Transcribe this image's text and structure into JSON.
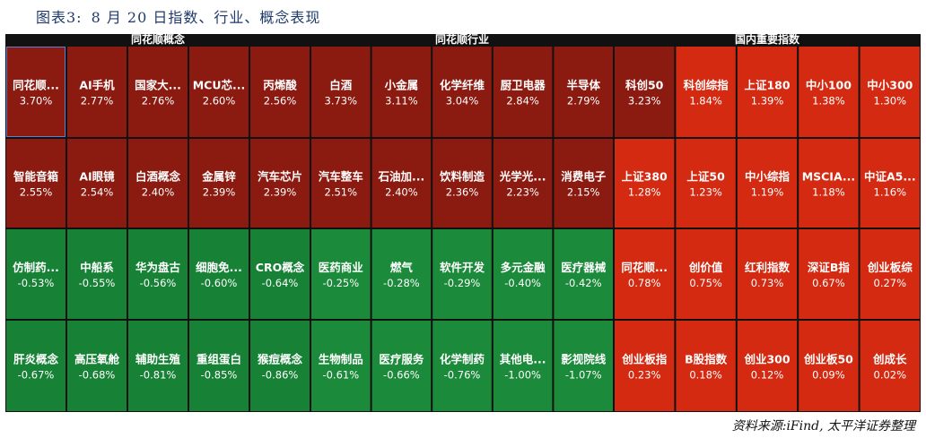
{
  "figure": {
    "label": "图表3:",
    "title": "8 月 20 日指数、行业、概念表现",
    "source": "资料来源:iFind, 太平洋证券整理"
  },
  "colors": {
    "positive_strong": "#8b1a10",
    "positive_mid": "#b3240f",
    "positive_light": "#d42a12",
    "negative_mid": "#1b8a3a",
    "negative_strong": "#178236"
  },
  "chart_data": {
    "type": "heatmap",
    "title": "",
    "groups": [
      {
        "name": "同花顺概念",
        "tiles": [
          {
            "name": "同花顺...",
            "value": "3.70%"
          },
          {
            "name": "AI手机",
            "value": "2.77%"
          },
          {
            "name": "国家大...",
            "value": "2.76%"
          },
          {
            "name": "MCU芯...",
            "value": "2.60%"
          },
          {
            "name": "丙烯酸",
            "value": "2.56%"
          },
          {
            "name": "智能音箱",
            "value": "2.55%"
          },
          {
            "name": "AI眼镜",
            "value": "2.54%"
          },
          {
            "name": "白酒概念",
            "value": "2.40%"
          },
          {
            "name": "金属锌",
            "value": "2.39%"
          },
          {
            "name": "汽车芯片",
            "value": "2.39%"
          },
          {
            "name": "仿制药...",
            "value": "-0.53%"
          },
          {
            "name": "中船系",
            "value": "-0.55%"
          },
          {
            "name": "华为盘古",
            "value": "-0.56%"
          },
          {
            "name": "细胞免...",
            "value": "-0.60%"
          },
          {
            "name": "CRO概念",
            "value": "-0.64%"
          },
          {
            "name": "肝炎概念",
            "value": "-0.67%"
          },
          {
            "name": "高压氧舱",
            "value": "-0.68%"
          },
          {
            "name": "辅助生殖",
            "value": "-0.81%"
          },
          {
            "name": "重组蛋白",
            "value": "-0.85%"
          },
          {
            "name": "猴痘概念",
            "value": "-0.86%"
          }
        ]
      },
      {
        "name": "同花顺行业",
        "tiles": [
          {
            "name": "白酒",
            "value": "3.73%"
          },
          {
            "name": "小金属",
            "value": "3.11%"
          },
          {
            "name": "化学纤维",
            "value": "3.04%"
          },
          {
            "name": "厨卫电器",
            "value": "2.84%"
          },
          {
            "name": "半导体",
            "value": "2.79%"
          },
          {
            "name": "汽车整车",
            "value": "2.51%"
          },
          {
            "name": "石油加...",
            "value": "2.40%"
          },
          {
            "name": "饮料制造",
            "value": "2.36%"
          },
          {
            "name": "光学光...",
            "value": "2.23%"
          },
          {
            "name": "消费电子",
            "value": "2.15%"
          },
          {
            "name": "医药商业",
            "value": "-0.25%"
          },
          {
            "name": "燃气",
            "value": "-0.28%"
          },
          {
            "name": "软件开发",
            "value": "-0.29%"
          },
          {
            "name": "多元金融",
            "value": "-0.40%"
          },
          {
            "name": "医疗器械",
            "value": "-0.42%"
          },
          {
            "name": "生物制品",
            "value": "-0.61%"
          },
          {
            "name": "医疗服务",
            "value": "-0.66%"
          },
          {
            "name": "化学制药",
            "value": "-0.76%"
          },
          {
            "name": "其他电...",
            "value": "-1.00%"
          },
          {
            "name": "影视院线",
            "value": "-1.07%"
          }
        ]
      },
      {
        "name": "国内重要指数",
        "tiles": [
          {
            "name": "科创50",
            "value": "3.23%"
          },
          {
            "name": "科创综指",
            "value": "1.84%"
          },
          {
            "name": "上证180",
            "value": "1.39%"
          },
          {
            "name": "中小100",
            "value": "1.38%"
          },
          {
            "name": "中小300",
            "value": "1.30%"
          },
          {
            "name": "上证380",
            "value": "1.28%"
          },
          {
            "name": "上证50",
            "value": "1.23%"
          },
          {
            "name": "中小综指",
            "value": "1.19%"
          },
          {
            "name": "MSCIA...",
            "value": "1.18%"
          },
          {
            "name": "中证A5...",
            "value": "1.16%"
          },
          {
            "name": "同花顺...",
            "value": "0.78%"
          },
          {
            "name": "创价值",
            "value": "0.75%"
          },
          {
            "name": "红利指数",
            "value": "0.73%"
          },
          {
            "name": "深证B指",
            "value": "0.67%"
          },
          {
            "name": "创业板综",
            "value": "0.27%"
          },
          {
            "name": "创业板指",
            "value": "0.23%"
          },
          {
            "name": "B股指数",
            "value": "0.18%"
          },
          {
            "name": "创业300",
            "value": "0.12%"
          },
          {
            "name": "创业板50",
            "value": "0.09%"
          },
          {
            "name": "创成长",
            "value": "0.02%"
          }
        ]
      }
    ]
  }
}
